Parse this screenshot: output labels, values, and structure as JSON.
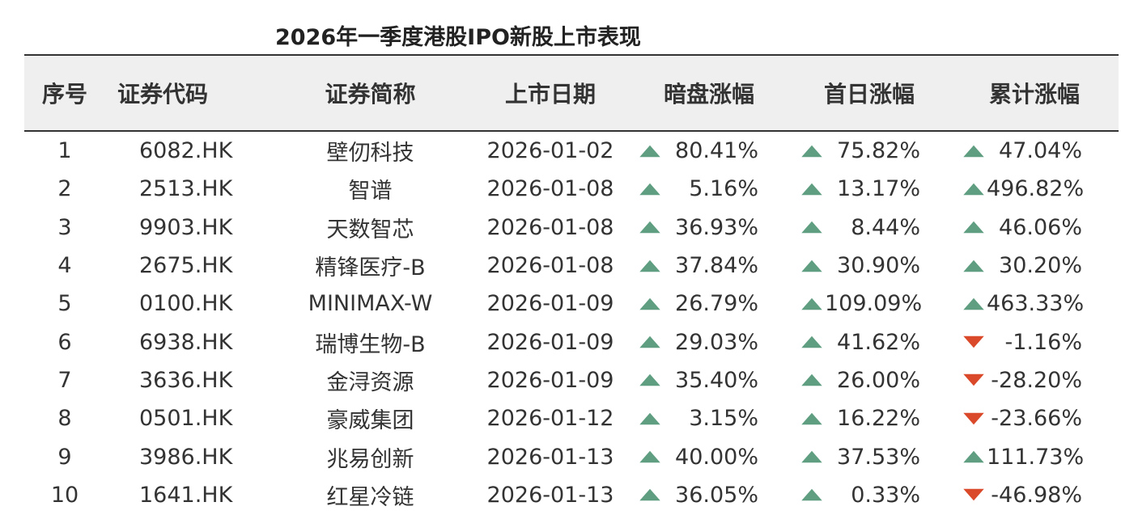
{
  "title": "2026年一季度港股IPO新股上市表现",
  "colors": {
    "up": "#5f9e80",
    "down": "#d9492a",
    "header_bg": "#efefef"
  },
  "columns": [
    "序号",
    "证券代码",
    "证券简称",
    "上市日期",
    "暗盘涨幅",
    "首日涨幅",
    "累计涨幅"
  ],
  "rows": [
    {
      "no": "1",
      "code": "6082.HK",
      "name": "壁仞科技",
      "date": "2026-01-02",
      "dark": "80.41%",
      "dark_dir": "up",
      "first": "75.82%",
      "first_dir": "up",
      "cum": "47.04%",
      "cum_dir": "up"
    },
    {
      "no": "2",
      "code": "2513.HK",
      "name": "智谱",
      "date": "2026-01-08",
      "dark": "5.16%",
      "dark_dir": "up",
      "first": "13.17%",
      "first_dir": "up",
      "cum": "496.82%",
      "cum_dir": "up"
    },
    {
      "no": "3",
      "code": "9903.HK",
      "name": "天数智芯",
      "date": "2026-01-08",
      "dark": "36.93%",
      "dark_dir": "up",
      "first": "8.44%",
      "first_dir": "up",
      "cum": "46.06%",
      "cum_dir": "up"
    },
    {
      "no": "4",
      "code": "2675.HK",
      "name": "精锋医疗-B",
      "date": "2026-01-08",
      "dark": "37.84%",
      "dark_dir": "up",
      "first": "30.90%",
      "first_dir": "up",
      "cum": "30.20%",
      "cum_dir": "up"
    },
    {
      "no": "5",
      "code": "0100.HK",
      "name": "MINIMAX-W",
      "date": "2026-01-09",
      "dark": "26.79%",
      "dark_dir": "up",
      "first": "109.09%",
      "first_dir": "up",
      "cum": "463.33%",
      "cum_dir": "up"
    },
    {
      "no": "6",
      "code": "6938.HK",
      "name": "瑞博生物-B",
      "date": "2026-01-09",
      "dark": "29.03%",
      "dark_dir": "up",
      "first": "41.62%",
      "first_dir": "up",
      "cum": "-1.16%",
      "cum_dir": "down"
    },
    {
      "no": "7",
      "code": "3636.HK",
      "name": "金浔资源",
      "date": "2026-01-09",
      "dark": "35.40%",
      "dark_dir": "up",
      "first": "26.00%",
      "first_dir": "up",
      "cum": "-28.20%",
      "cum_dir": "down"
    },
    {
      "no": "8",
      "code": "0501.HK",
      "name": "豪威集团",
      "date": "2026-01-12",
      "dark": "3.15%",
      "dark_dir": "up",
      "first": "16.22%",
      "first_dir": "up",
      "cum": "-23.66%",
      "cum_dir": "down"
    },
    {
      "no": "9",
      "code": "3986.HK",
      "name": "兆易创新",
      "date": "2026-01-13",
      "dark": "40.00%",
      "dark_dir": "up",
      "first": "37.53%",
      "first_dir": "up",
      "cum": "111.73%",
      "cum_dir": "up"
    },
    {
      "no": "10",
      "code": "1641.HK",
      "name": "红星冷链",
      "date": "2026-01-13",
      "dark": "36.05%",
      "dark_dir": "up",
      "first": "0.33%",
      "first_dir": "up",
      "cum": "-46.98%",
      "cum_dir": "down"
    }
  ]
}
